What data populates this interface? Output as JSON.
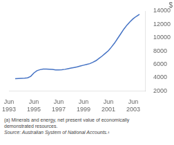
{
  "chart_data": {
    "type": "line",
    "ylabel": "$",
    "color": "#4472C4",
    "x": [
      1993.5,
      1993.75,
      1994.0,
      1994.25,
      1994.5,
      1994.75,
      1995.0,
      1995.25,
      1995.5,
      1995.75,
      1996.0,
      1996.25,
      1996.5,
      1996.75,
      1997.0,
      1997.25,
      1997.5,
      1997.75,
      1998.0,
      1998.25,
      1998.5,
      1998.75,
      1999.0,
      1999.25,
      1999.5,
      1999.75,
      2000.0,
      2000.25,
      2000.5,
      2000.75,
      2001.0,
      2001.25,
      2001.5,
      2001.75,
      2002.0,
      2002.25,
      2002.5,
      2002.75,
      2003.0,
      2003.25,
      2003.5
    ],
    "values": [
      3850,
      3880,
      3900,
      3920,
      3980,
      4200,
      4700,
      5050,
      5200,
      5280,
      5300,
      5270,
      5230,
      5170,
      5150,
      5180,
      5250,
      5350,
      5450,
      5530,
      5620,
      5750,
      5870,
      5980,
      6100,
      6300,
      6550,
      6900,
      7250,
      7650,
      8050,
      8600,
      9200,
      9900,
      10600,
      11300,
      11900,
      12400,
      12850,
      13200,
      13500
    ],
    "xlim": [
      1993.0,
      2004.0
    ],
    "xticks": [
      {
        "value": 1993,
        "label": "Jun\n1993"
      },
      {
        "value": 1995,
        "label": "Jun\n1995"
      },
      {
        "value": 1997,
        "label": "Jun\n1997"
      },
      {
        "value": 1999,
        "label": "Jun\n1999"
      },
      {
        "value": 2001,
        "label": "Jun\n2001"
      },
      {
        "value": 2003,
        "label": "Jun\n2003"
      }
    ],
    "ylim": [
      2000,
      14000
    ],
    "yticks": [
      2000,
      4000,
      6000,
      8000,
      10000,
      12000,
      14000
    ],
    "grid": false,
    "annotations": [
      "(a) Minerals and energy, net present value of economically",
      "demonstrated resources.",
      "Source: Australian System of National Accounts.¹"
    ]
  }
}
